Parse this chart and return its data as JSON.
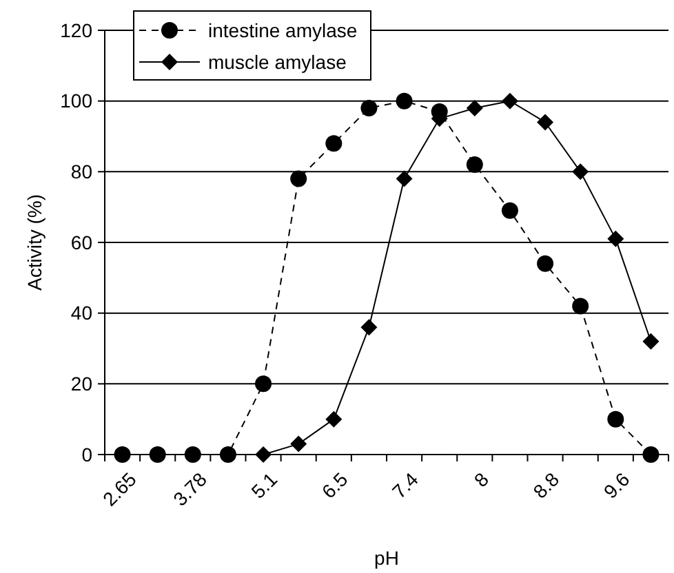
{
  "chart_data": {
    "type": "line",
    "xlabel": "pH",
    "ylabel": "Activity (%)",
    "categories": [
      "2.65",
      null,
      "3.78",
      null,
      "5.1",
      null,
      "6.5",
      null,
      "7.4",
      null,
      "8",
      null,
      "8.8",
      null,
      "9.6",
      null
    ],
    "series": [
      {
        "name": "intestine amylase",
        "color": "#000000",
        "marker": "circle",
        "line_style": "dashed",
        "values": [
          0,
          0,
          0,
          0,
          20,
          78,
          88,
          98,
          100,
          97,
          82,
          69,
          54,
          42,
          10,
          0
        ]
      },
      {
        "name": "muscle amylase",
        "color": "#000000",
        "marker": "diamond",
        "line_style": "solid",
        "values": [
          null,
          null,
          null,
          null,
          0,
          3,
          10,
          36,
          78,
          95,
          98,
          100,
          94,
          80,
          61,
          32
        ]
      }
    ],
    "ylim": [
      0,
      120
    ],
    "yticks": [
      0,
      20,
      40,
      60,
      80,
      100,
      120
    ],
    "grid": "y",
    "legend": "top left"
  }
}
